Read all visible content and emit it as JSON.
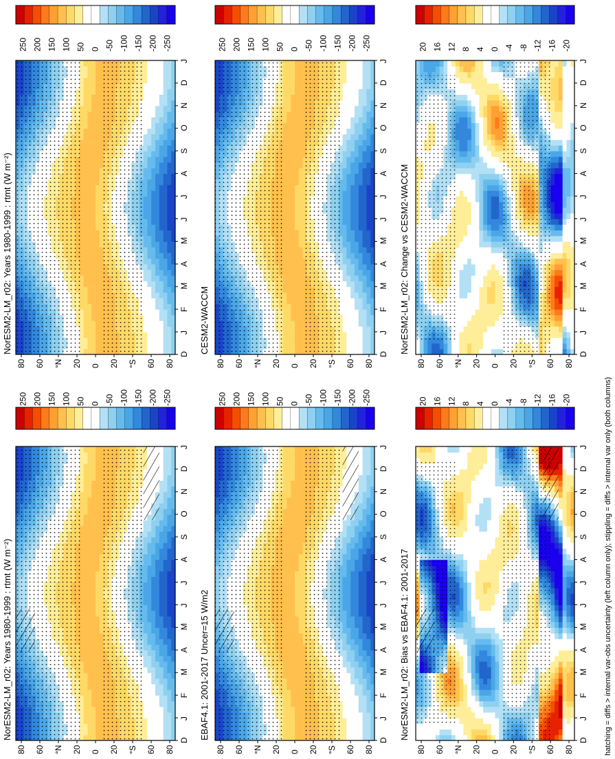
{
  "footer": "hatching = diffs > internal var-obs uncertainty (left column only); stippling = diffs > internal var only (both columns)",
  "months": [
    "D",
    "J",
    "F",
    "M",
    "A",
    "M",
    "J",
    "J",
    "A",
    "S",
    "O",
    "N",
    "D",
    "J"
  ],
  "lat_ticks": [
    "80",
    "60",
    "°N",
    "20",
    "0",
    "20",
    "°S",
    "60",
    "80"
  ],
  "chart_data": [
    {
      "type": "heatmap",
      "title": "NorESM2-LM_r02: Years 1980-1999 : rtmt (W m⁻²)",
      "kind": "abs",
      "colorbar": [
        "250",
        "200",
        "150",
        "100",
        "50",
        "0",
        "-50",
        "-100",
        "-150",
        "-200",
        "-250"
      ]
    },
    {
      "type": "heatmap",
      "title": "EBAF4.1: 2001-2017 Uncer=15 W/m2",
      "kind": "abs",
      "colorbar": [
        "250",
        "200",
        "150",
        "100",
        "50",
        "0",
        "-50",
        "-100",
        "-150",
        "-200",
        "-250"
      ]
    },
    {
      "type": "heatmap",
      "title": "NorESM2-LM_r02: Bias vs EBAF4.1: 2001-2017",
      "kind": "diff",
      "colorbar": [
        "20",
        "16",
        "12",
        "8",
        "4",
        "0",
        "-4",
        "-8",
        "-12",
        "-16",
        "-20"
      ]
    },
    {
      "type": "heatmap",
      "title": "NorESM2-LM_r02: Years 1980-1999 : rtmt (W m⁻²)",
      "kind": "abs",
      "colorbar": [
        "250",
        "200",
        "150",
        "100",
        "50",
        "0",
        "-50",
        "-100",
        "-150",
        "-200",
        "-250"
      ]
    },
    {
      "type": "heatmap",
      "title": "CESM2-WACCM",
      "kind": "abs",
      "colorbar": [
        "250",
        "200",
        "150",
        "100",
        "50",
        "0",
        "-50",
        "-100",
        "-150",
        "-200",
        "-250"
      ]
    },
    {
      "type": "heatmap",
      "title": "NorESM2-LM_r02: Change vs CESM2-WACCM",
      "kind": "diff",
      "colorbar": [
        "20",
        "16",
        "12",
        "8",
        "4",
        "0",
        "-4",
        "-8",
        "-12",
        "-16",
        "-20"
      ]
    }
  ],
  "colors": [
    "#cc0000",
    "#e62200",
    "#f54e00",
    "#ff7a1a",
    "#ffa033",
    "#ffc04d",
    "#ffd966",
    "#ffee99",
    "#ffffff",
    "#ffffff",
    "#b3e0f5",
    "#8fd0f0",
    "#66bbee",
    "#4aa6e6",
    "#3388dd",
    "#2266cc",
    "#1a44c8",
    "#2222dd",
    "#1a00ee"
  ]
}
